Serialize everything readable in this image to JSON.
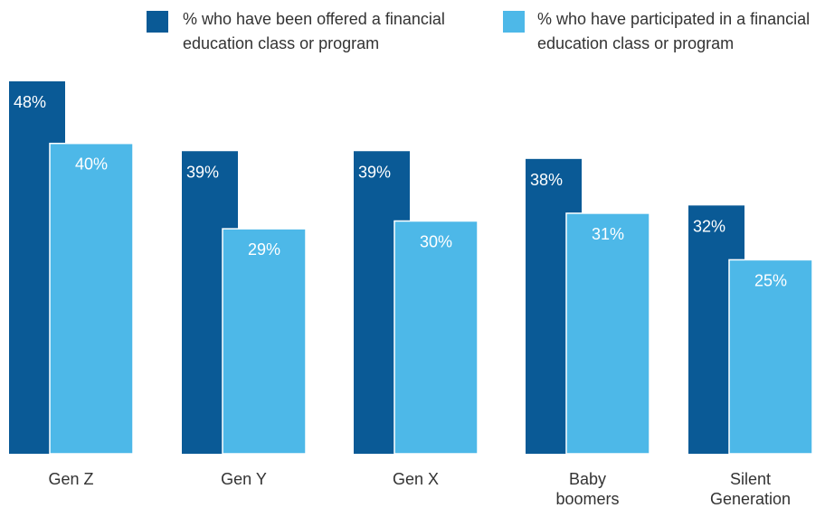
{
  "chart_data": {
    "type": "bar",
    "categories": [
      [
        "Gen Z"
      ],
      [
        "Gen Y"
      ],
      [
        "Gen X"
      ],
      [
        "Baby",
        "boomers"
      ],
      [
        "Silent",
        "Generation"
      ]
    ],
    "series": [
      {
        "name_lines": [
          "% who have been offered a financial",
          "education class or program"
        ],
        "values": [
          48,
          39,
          39,
          38,
          32
        ],
        "labels": [
          "48%",
          "39%",
          "39%",
          "38%",
          "32%"
        ],
        "color": "#0a5a96"
      },
      {
        "name_lines": [
          "% who have participated in a financial",
          "education class or program"
        ],
        "values": [
          40,
          29,
          30,
          31,
          25
        ],
        "labels": [
          "40%",
          "29%",
          "30%",
          "31%",
          "25%"
        ],
        "color": "#4db8e8"
      }
    ],
    "ylim": [
      0,
      48
    ],
    "grid": false,
    "legend": "top"
  }
}
